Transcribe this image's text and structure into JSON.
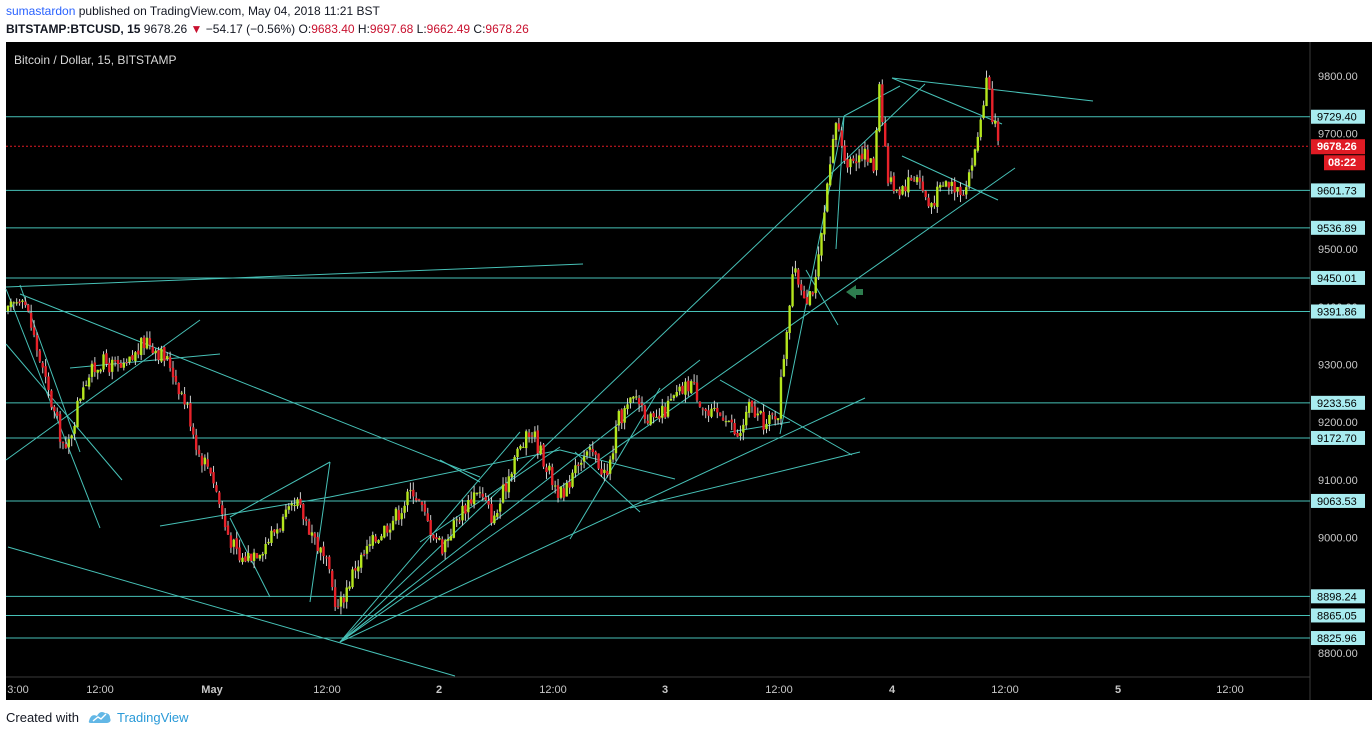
{
  "header": {
    "author": "sumastardon",
    "published_text": "published on TradingView.com, May 04, 2018 11:21 BST",
    "symbol": "BITSTAMP:BTCUSD, 15",
    "last": "9678.26",
    "arrow": "▼",
    "change": "−54.17 (−0.56%)",
    "o_label": "O:",
    "o_val": "9683.40",
    "h_label": "H:",
    "h_val": "9697.68",
    "l_label": "L:",
    "l_val": "9662.49",
    "c_label": "C:",
    "c_val": "9678.26"
  },
  "chart_data": {
    "type": "candlestick",
    "title": "Bitcoin / Dollar, 15, BITSTAMP",
    "colors": {
      "background": "#000000",
      "up": "#b5e61d",
      "down": "#e8222a",
      "wick": "#d0d0d0",
      "trendline": "#47c1b7",
      "last_price": "#e01b24",
      "axis_text": "#c8c8c8",
      "arrow": "#2e7d4f"
    },
    "ylim": [
      8780,
      9840
    ],
    "x_labels": [
      "3:00",
      "12:00",
      "May",
      "12:00",
      "2",
      "12:00",
      "3",
      "12:00",
      "4",
      "12:00",
      "5",
      "12:00"
    ],
    "y_ticks": [
      "9800.00",
      "9700.00",
      "9500.00",
      "9400.00",
      "9300.00",
      "9200.00",
      "9100.00",
      "9000.00",
      "8800.00"
    ],
    "level_labels": [
      "9729.40",
      "9601.73",
      "9536.89",
      "9450.01",
      "9391.86",
      "9233.56",
      "9172.70",
      "9063.53",
      "8898.24",
      "8865.05",
      "8825.96"
    ],
    "levels": [
      9729.4,
      9601.73,
      9536.89,
      9450.01,
      9391.86,
      9233.56,
      9172.7,
      9063.53,
      8898.24,
      8865.05,
      8825.96
    ],
    "last_price": "9678.26",
    "countdown": "08:22",
    "path_keypoints": [
      [
        0,
        9390
      ],
      [
        5,
        9425
      ],
      [
        14,
        9250
      ],
      [
        20,
        9145
      ],
      [
        26,
        9270
      ],
      [
        32,
        9305
      ],
      [
        40,
        9290
      ],
      [
        48,
        9345
      ],
      [
        56,
        9300
      ],
      [
        62,
        9225
      ],
      [
        66,
        9145
      ],
      [
        70,
        9120
      ],
      [
        75,
        9020
      ],
      [
        80,
        8960
      ],
      [
        88,
        8985
      ],
      [
        94,
        9025
      ],
      [
        100,
        9055
      ],
      [
        105,
        9010
      ],
      [
        110,
        8950
      ],
      [
        114,
        8875
      ],
      [
        120,
        8950
      ],
      [
        128,
        9005
      ],
      [
        135,
        9045
      ],
      [
        140,
        9085
      ],
      [
        145,
        9025
      ],
      [
        150,
        8985
      ],
      [
        156,
        9040
      ],
      [
        162,
        9085
      ],
      [
        168,
        9030
      ],
      [
        175,
        9140
      ],
      [
        181,
        9185
      ],
      [
        188,
        9100
      ],
      [
        192,
        9065
      ],
      [
        196,
        9135
      ],
      [
        202,
        9145
      ],
      [
        207,
        9105
      ],
      [
        211,
        9205
      ],
      [
        217,
        9245
      ],
      [
        223,
        9195
      ],
      [
        230,
        9240
      ],
      [
        236,
        9270
      ],
      [
        242,
        9210
      ],
      [
        248,
        9215
      ],
      [
        252,
        9170
      ],
      [
        256,
        9225
      ],
      [
        262,
        9195
      ],
      [
        266,
        9220
      ],
      [
        269,
        9365
      ],
      [
        271,
        9460
      ],
      [
        276,
        9420
      ],
      [
        279,
        9440
      ],
      [
        282,
        9560
      ],
      [
        286,
        9720
      ],
      [
        290,
        9650
      ],
      [
        295,
        9670
      ],
      [
        299,
        9640
      ],
      [
        301,
        9790
      ],
      [
        304,
        9620
      ],
      [
        308,
        9605
      ],
      [
        314,
        9630
      ],
      [
        318,
        9575
      ],
      [
        324,
        9615
      ],
      [
        330,
        9605
      ],
      [
        334,
        9665
      ],
      [
        338,
        9790
      ],
      [
        342,
        9680
      ]
    ]
  },
  "footer": {
    "created_with": "Created with",
    "brand": "TradingView"
  }
}
